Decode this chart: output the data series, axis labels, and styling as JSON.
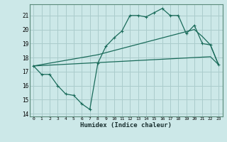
{
  "xlabel": "Humidex (Indice chaleur)",
  "bg_color": "#cce8e8",
  "grid_color": "#aacccc",
  "line_color": "#1a6b5a",
  "xlim": [
    -0.5,
    23.5
  ],
  "ylim": [
    13.8,
    21.8
  ],
  "yticks": [
    14,
    15,
    16,
    17,
    18,
    19,
    20,
    21
  ],
  "xticks": [
    0,
    1,
    2,
    3,
    4,
    5,
    6,
    7,
    8,
    9,
    10,
    11,
    12,
    13,
    14,
    15,
    16,
    17,
    18,
    19,
    20,
    21,
    22,
    23
  ],
  "line1_x": [
    0,
    1,
    2,
    3,
    4,
    5,
    6,
    7,
    8,
    9,
    10,
    11,
    12,
    13,
    14,
    15,
    16,
    17,
    18,
    19,
    20,
    21,
    22,
    23
  ],
  "line1_y": [
    17.4,
    16.8,
    16.8,
    16.0,
    15.4,
    15.3,
    14.7,
    14.3,
    17.6,
    18.8,
    19.4,
    19.9,
    21.0,
    21.0,
    20.9,
    21.2,
    21.5,
    21.0,
    21.0,
    19.7,
    20.3,
    19.0,
    18.9,
    17.5
  ],
  "line2_x": [
    0,
    1,
    2,
    3,
    4,
    5,
    6,
    7,
    8,
    9,
    10,
    11,
    12,
    13,
    14,
    15,
    16,
    17,
    18,
    19,
    20,
    21,
    22,
    23
  ],
  "line2_y": [
    17.4,
    17.43,
    17.46,
    17.49,
    17.52,
    17.55,
    17.58,
    17.61,
    17.64,
    17.67,
    17.7,
    17.73,
    17.76,
    17.79,
    17.82,
    17.85,
    17.88,
    17.91,
    17.94,
    17.97,
    18.0,
    18.03,
    18.06,
    17.5
  ],
  "line3_x": [
    0,
    1,
    2,
    3,
    4,
    5,
    6,
    7,
    8,
    9,
    10,
    11,
    12,
    13,
    14,
    15,
    16,
    17,
    18,
    19,
    20,
    21,
    22,
    23
  ],
  "line3_y": [
    17.4,
    17.5,
    17.6,
    17.7,
    17.8,
    17.9,
    18.0,
    18.1,
    18.2,
    18.35,
    18.5,
    18.65,
    18.8,
    18.95,
    19.1,
    19.25,
    19.4,
    19.55,
    19.7,
    19.85,
    20.0,
    19.5,
    18.9,
    17.5
  ]
}
